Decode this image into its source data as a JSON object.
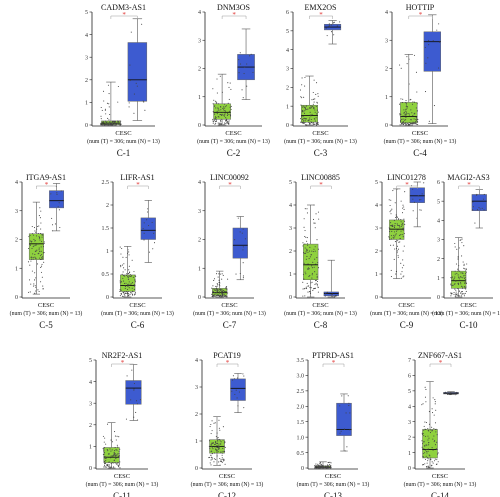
{
  "chart_data": [
    {
      "type": "box",
      "id": "C-1",
      "title": "CADM3-AS1",
      "ylim": [
        0,
        5
      ],
      "yticks": [
        "0",
        "1",
        "2",
        "3",
        "4",
        "5"
      ],
      "tumor": {
        "min": 0,
        "q1": 0.02,
        "median": 0.08,
        "q3": 0.18,
        "max": 1.9
      },
      "normal": {
        "min": 0.2,
        "q1": 1.05,
        "median": 2.0,
        "q3": 3.65,
        "max": 4.7
      },
      "xlabel": "CESC",
      "caption": "(num (T) = 306; num (N) = 13)",
      "label": "C-1"
    },
    {
      "type": "box",
      "id": "C-2",
      "title": "DNM3OS",
      "ylim": [
        0,
        4
      ],
      "yticks": [
        "0",
        "1",
        "2",
        "3",
        "4"
      ],
      "tumor": {
        "min": 0,
        "q1": 0.2,
        "median": 0.45,
        "q3": 0.75,
        "max": 1.8
      },
      "normal": {
        "min": 0.9,
        "q1": 1.6,
        "median": 2.05,
        "q3": 2.5,
        "max": 3.4
      },
      "xlabel": "CESC",
      "caption": "(num (T) = 306; num (N) = 13)",
      "label": "C-2"
    },
    {
      "type": "box",
      "id": "C-3",
      "title": "EMX2OS",
      "ylim": [
        0,
        6
      ],
      "yticks": [
        "0",
        "1",
        "2",
        "3",
        "4",
        "5",
        "6"
      ],
      "tumor": {
        "min": 0,
        "q1": 0.15,
        "median": 0.5,
        "q3": 1.05,
        "max": 2.6
      },
      "normal": {
        "min": 4.3,
        "q1": 5.05,
        "median": 5.2,
        "q3": 5.35,
        "max": 5.55
      },
      "xlabel": "CESC",
      "caption": "(num (T) = 306; num (N) = 13)",
      "label": "C-3"
    },
    {
      "type": "box",
      "id": "C-4",
      "title": "HOTTIP",
      "ylim": [
        0,
        4
      ],
      "yticks": [
        "0",
        "1",
        "2",
        "3",
        "4"
      ],
      "tumor": {
        "min": 0,
        "q1": 0.08,
        "median": 0.3,
        "q3": 0.8,
        "max": 2.5
      },
      "normal": {
        "min": 0.05,
        "q1": 1.9,
        "median": 2.95,
        "q3": 3.3,
        "max": 3.9
      },
      "xlabel": "CESC",
      "caption": "(num (T) = 306; num (N) = 13)",
      "label": "C-4"
    },
    {
      "type": "box",
      "id": "C-5",
      "title": "ITGA9-AS1",
      "ylim": [
        0,
        4
      ],
      "yticks": [
        "0",
        "1",
        "2",
        "3",
        "4"
      ],
      "tumor": {
        "min": 0.1,
        "q1": 1.3,
        "median": 1.85,
        "q3": 2.2,
        "max": 3.3
      },
      "normal": {
        "min": 2.3,
        "q1": 3.1,
        "median": 3.35,
        "q3": 3.7,
        "max": 3.95
      },
      "xlabel": "CESC",
      "caption": "(num (T) = 306; num (N) = 13)",
      "label": "C-5"
    },
    {
      "type": "box",
      "id": "C-6",
      "title": "LIFR-AS1",
      "ylim": [
        0,
        2.5
      ],
      "yticks": [
        "0",
        "0.5",
        "1",
        "1.5",
        "2",
        "2.5"
      ],
      "tumor": {
        "min": 0,
        "q1": 0.12,
        "median": 0.25,
        "q3": 0.48,
        "max": 1.1
      },
      "normal": {
        "min": 0.75,
        "q1": 1.25,
        "median": 1.45,
        "q3": 1.72,
        "max": 2.1
      },
      "xlabel": "CESC",
      "caption": "(num (T) = 306; num (N) = 13)",
      "label": "C-6"
    },
    {
      "type": "box",
      "id": "C-7",
      "title": "LINC00092",
      "ylim": [
        0,
        4
      ],
      "yticks": [
        "0",
        "1",
        "2",
        "3",
        "4"
      ],
      "tumor": {
        "min": 0,
        "q1": 0.05,
        "median": 0.15,
        "q3": 0.3,
        "max": 0.9
      },
      "normal": {
        "min": 0.6,
        "q1": 1.35,
        "median": 1.8,
        "q3": 2.4,
        "max": 2.8
      },
      "xlabel": "CESC",
      "caption": "(num (T) = 306; num (N) = 13)",
      "label": "C-7"
    },
    {
      "type": "box",
      "id": "C-8",
      "title": "LINC00885",
      "ylim": [
        0,
        5
      ],
      "yticks": [
        "0",
        "1",
        "2",
        "3",
        "4",
        "5"
      ],
      "tumor": {
        "min": 0,
        "q1": 0.75,
        "median": 1.4,
        "q3": 2.3,
        "max": 4.0
      },
      "normal": {
        "min": 0,
        "q1": 0.05,
        "median": 0.15,
        "q3": 0.22,
        "max": 1.6
      },
      "xlabel": "CESC",
      "caption": "(num (T) = 306; num (N) = 13)",
      "label": "C-8"
    },
    {
      "type": "box",
      "id": "C-9",
      "title": "LINC01278",
      "ylim": [
        0,
        5
      ],
      "yticks": [
        "0",
        "1",
        "2",
        "3",
        "4",
        "5"
      ],
      "tumor": {
        "min": 0.8,
        "q1": 2.5,
        "median": 2.95,
        "q3": 3.35,
        "max": 4.7
      },
      "normal": {
        "min": 3.05,
        "q1": 4.1,
        "median": 4.4,
        "q3": 4.75,
        "max": 5.0
      },
      "xlabel": "CESC",
      "caption": "(num (T) = 306; num (N) = 13)",
      "label": "C-9"
    },
    {
      "type": "box",
      "id": "C-10",
      "title": "MAGI2-AS3",
      "ylim": [
        0,
        6
      ],
      "yticks": [
        "0",
        "1",
        "2",
        "3",
        "4",
        "5",
        "6"
      ],
      "tumor": {
        "min": 0,
        "q1": 0.45,
        "median": 0.85,
        "q3": 1.35,
        "max": 3.1
      },
      "normal": {
        "min": 3.6,
        "q1": 4.5,
        "median": 5.0,
        "q3": 5.35,
        "max": 5.6
      },
      "xlabel": "CESC",
      "caption": "(num (T) = 306; num (N) = 13)",
      "label": "C-10"
    },
    {
      "type": "box",
      "id": "C-11",
      "title": "NR2F2-AS1",
      "ylim": [
        0,
        5
      ],
      "yticks": [
        "0",
        "1",
        "2",
        "3",
        "4",
        "5"
      ],
      "tumor": {
        "min": 0,
        "q1": 0.25,
        "median": 0.5,
        "q3": 0.95,
        "max": 2.1
      },
      "normal": {
        "min": 2.2,
        "q1": 2.95,
        "median": 3.7,
        "q3": 4.05,
        "max": 4.8
      },
      "xlabel": "CESC",
      "caption": "(num (T) = 306; num (N) = 13)",
      "label": "C-11"
    },
    {
      "type": "box",
      "id": "C-12",
      "title": "PCAT19",
      "ylim": [
        0,
        4
      ],
      "yticks": [
        "0",
        "1",
        "2",
        "3",
        "4"
      ],
      "tumor": {
        "min": 0.1,
        "q1": 0.55,
        "median": 0.8,
        "q3": 1.05,
        "max": 1.9
      },
      "normal": {
        "min": 2.05,
        "q1": 2.5,
        "median": 2.95,
        "q3": 3.3,
        "max": 3.5
      },
      "xlabel": "CESC",
      "caption": "(num (T) = 306; num (N) = 13)",
      "label": "C-12"
    },
    {
      "type": "box",
      "id": "C-13",
      "title": "PTPRD-AS1",
      "ylim": [
        0,
        3.5
      ],
      "yticks": [
        "0",
        "0.5",
        "1.0",
        "1.5",
        "2.0",
        "2.5",
        "3.0",
        "3.5"
      ],
      "tumor": {
        "min": 0,
        "q1": 0.01,
        "median": 0.03,
        "q3": 0.07,
        "max": 0.2
      },
      "normal": {
        "min": 0.55,
        "q1": 1.05,
        "median": 1.25,
        "q3": 2.1,
        "max": 2.4
      },
      "xlabel": "CESC",
      "caption": "(num (T) = 306; num (N) = 13)",
      "label": "C-13"
    },
    {
      "type": "box",
      "id": "C-14",
      "title": "ZNF667-AS1",
      "ylim": [
        0,
        7
      ],
      "yticks": [
        "0",
        "1",
        "2",
        "3",
        "4",
        "5",
        "6",
        "7"
      ],
      "tumor": {
        "min": 0,
        "q1": 0.65,
        "median": 1.2,
        "q3": 2.5,
        "max": 5.6
      },
      "normal": {
        "min": 4.75,
        "q1": 4.8,
        "median": 4.85,
        "q3": 4.9,
        "max": 4.95
      },
      "xlabel": "CESC",
      "caption": "(num (T) = 306; num (N) = 13)",
      "label": "C-14"
    }
  ],
  "colors": {
    "tumor": "#8fd13f",
    "normal": "#3d5bd0",
    "points": "#444444",
    "star": "#e0312f",
    "axis": "#222222"
  },
  "star": "*"
}
